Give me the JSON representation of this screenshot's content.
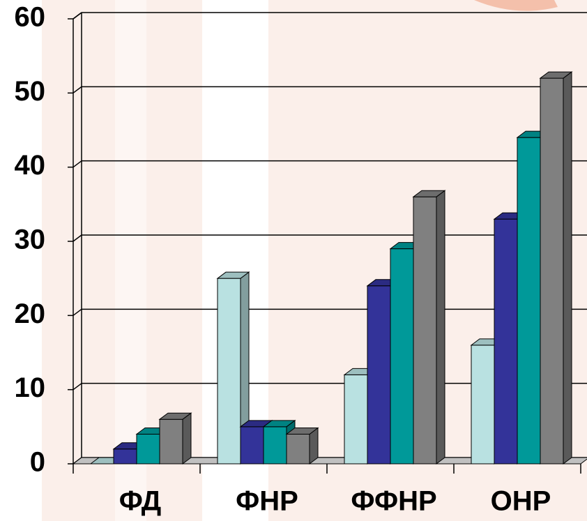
{
  "chart_data": {
    "type": "bar3d",
    "categories": [
      "ФД",
      "ФНР",
      "ФФНР",
      "ОНР"
    ],
    "series": [
      {
        "color": "#b9e1e1",
        "values": [
          0,
          25,
          12,
          16
        ]
      },
      {
        "color": "#333399",
        "values": [
          2,
          5,
          24,
          33
        ]
      },
      {
        "color": "#009999",
        "values": [
          4,
          5,
          29,
          44
        ]
      },
      {
        "color": "#808080",
        "values": [
          6,
          4,
          36,
          52
        ]
      }
    ],
    "ylim": [
      0,
      60
    ],
    "yticks": [
      0,
      10,
      20,
      30,
      40,
      50,
      60
    ],
    "grid": true
  }
}
